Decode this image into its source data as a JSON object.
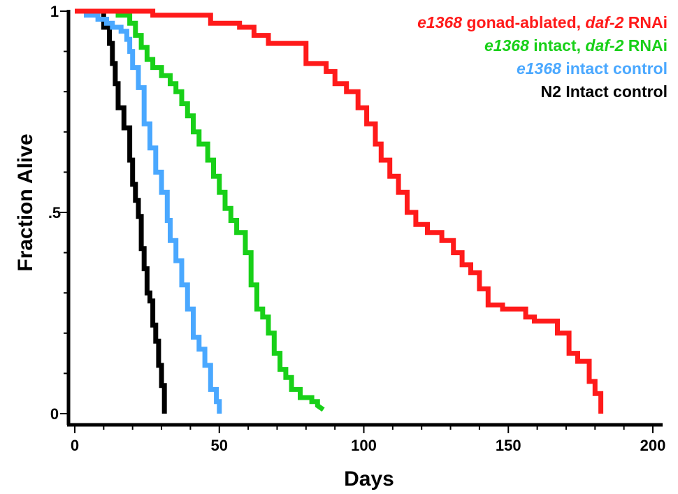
{
  "chart_data": {
    "type": "line",
    "step": true,
    "xlabel": "Days",
    "ylabel": "Fraction  Alive",
    "xlim": [
      0,
      200
    ],
    "ylim": [
      0,
      1
    ],
    "x_ticks": [
      "0",
      "50",
      "100",
      "150",
      "200"
    ],
    "y_ticks": [
      "0",
      ".5",
      "1"
    ],
    "grid": false,
    "legend_position": "top-right",
    "series": [
      {
        "name": "e1368 gonad-ablated, daf-2 RNAi",
        "label_parts": [
          {
            "text": "e1368",
            "italic": true
          },
          {
            "text": " gonad-ablated, ",
            "italic": false
          },
          {
            "text": "daf-2",
            "italic": true
          },
          {
            "text": " RNAi",
            "italic": false
          }
        ],
        "color": "#ff1a1a",
        "points": [
          [
            0,
            1.0
          ],
          [
            27,
            1.0
          ],
          [
            27,
            0.99
          ],
          [
            47,
            0.99
          ],
          [
            47,
            0.97
          ],
          [
            57,
            0.97
          ],
          [
            57,
            0.96
          ],
          [
            62,
            0.96
          ],
          [
            62,
            0.94
          ],
          [
            67,
            0.94
          ],
          [
            67,
            0.92
          ],
          [
            80,
            0.92
          ],
          [
            80,
            0.87
          ],
          [
            87,
            0.87
          ],
          [
            87,
            0.85
          ],
          [
            90,
            0.85
          ],
          [
            90,
            0.82
          ],
          [
            94,
            0.82
          ],
          [
            94,
            0.8
          ],
          [
            98,
            0.8
          ],
          [
            98,
            0.76
          ],
          [
            101,
            0.76
          ],
          [
            101,
            0.72
          ],
          [
            104,
            0.72
          ],
          [
            104,
            0.67
          ],
          [
            106,
            0.67
          ],
          [
            106,
            0.63
          ],
          [
            109,
            0.63
          ],
          [
            109,
            0.59
          ],
          [
            112,
            0.59
          ],
          [
            112,
            0.55
          ],
          [
            115,
            0.55
          ],
          [
            115,
            0.5
          ],
          [
            118,
            0.5
          ],
          [
            118,
            0.47
          ],
          [
            122,
            0.47
          ],
          [
            122,
            0.45
          ],
          [
            127,
            0.45
          ],
          [
            127,
            0.43
          ],
          [
            131,
            0.43
          ],
          [
            131,
            0.4
          ],
          [
            134,
            0.4
          ],
          [
            134,
            0.37
          ],
          [
            137,
            0.37
          ],
          [
            137,
            0.35
          ],
          [
            140,
            0.35
          ],
          [
            140,
            0.31
          ],
          [
            143,
            0.31
          ],
          [
            143,
            0.27
          ],
          [
            148,
            0.27
          ],
          [
            148,
            0.26
          ],
          [
            156,
            0.26
          ],
          [
            156,
            0.24
          ],
          [
            159,
            0.24
          ],
          [
            159,
            0.23
          ],
          [
            167,
            0.23
          ],
          [
            167,
            0.2
          ],
          [
            171,
            0.2
          ],
          [
            171,
            0.15
          ],
          [
            174,
            0.15
          ],
          [
            174,
            0.13
          ],
          [
            178,
            0.13
          ],
          [
            178,
            0.08
          ],
          [
            180,
            0.08
          ],
          [
            180,
            0.05
          ],
          [
            182,
            0.05
          ],
          [
            182,
            0.0
          ]
        ]
      },
      {
        "name": "e1368 intact, daf-2 RNAi",
        "label_parts": [
          {
            "text": "e1368",
            "italic": true
          },
          {
            "text": " intact, ",
            "italic": false
          },
          {
            "text": "daf-2",
            "italic": true
          },
          {
            "text": " RNAi",
            "italic": false
          }
        ],
        "color": "#18d018",
        "points": [
          [
            0,
            1.0
          ],
          [
            15,
            1.0
          ],
          [
            15,
            0.99
          ],
          [
            19,
            0.99
          ],
          [
            19,
            0.97
          ],
          [
            21,
            0.97
          ],
          [
            21,
            0.94
          ],
          [
            23,
            0.94
          ],
          [
            23,
            0.91
          ],
          [
            25,
            0.91
          ],
          [
            25,
            0.88
          ],
          [
            27,
            0.88
          ],
          [
            27,
            0.86
          ],
          [
            30,
            0.86
          ],
          [
            30,
            0.84
          ],
          [
            33,
            0.84
          ],
          [
            33,
            0.82
          ],
          [
            35,
            0.82
          ],
          [
            35,
            0.8
          ],
          [
            37,
            0.8
          ],
          [
            37,
            0.77
          ],
          [
            39,
            0.77
          ],
          [
            39,
            0.74
          ],
          [
            41,
            0.74
          ],
          [
            41,
            0.7
          ],
          [
            43,
            0.7
          ],
          [
            43,
            0.67
          ],
          [
            46,
            0.67
          ],
          [
            46,
            0.63
          ],
          [
            48,
            0.63
          ],
          [
            48,
            0.59
          ],
          [
            50,
            0.59
          ],
          [
            50,
            0.55
          ],
          [
            52,
            0.55
          ],
          [
            52,
            0.51
          ],
          [
            54,
            0.51
          ],
          [
            54,
            0.48
          ],
          [
            56,
            0.48
          ],
          [
            56,
            0.45
          ],
          [
            59,
            0.45
          ],
          [
            59,
            0.4
          ],
          [
            61,
            0.4
          ],
          [
            61,
            0.32
          ],
          [
            63,
            0.32
          ],
          [
            63,
            0.26
          ],
          [
            65,
            0.26
          ],
          [
            65,
            0.24
          ],
          [
            67,
            0.24
          ],
          [
            67,
            0.2
          ],
          [
            69,
            0.2
          ],
          [
            69,
            0.15
          ],
          [
            71,
            0.15
          ],
          [
            71,
            0.11
          ],
          [
            73,
            0.11
          ],
          [
            73,
            0.09
          ],
          [
            75,
            0.09
          ],
          [
            75,
            0.06
          ],
          [
            78,
            0.06
          ],
          [
            78,
            0.04
          ],
          [
            82,
            0.04
          ],
          [
            82,
            0.03
          ],
          [
            84,
            0.03
          ],
          [
            84,
            0.02
          ],
          [
            86,
            0.01
          ]
        ]
      },
      {
        "name": "e1368 intact control",
        "label_parts": [
          {
            "text": "e1368",
            "italic": true
          },
          {
            "text": " intact control",
            "italic": false
          }
        ],
        "color": "#4aa8ff",
        "points": [
          [
            0,
            1.0
          ],
          [
            4,
            1.0
          ],
          [
            4,
            0.99
          ],
          [
            8,
            0.99
          ],
          [
            8,
            0.98
          ],
          [
            11,
            0.98
          ],
          [
            11,
            0.97
          ],
          [
            13,
            0.97
          ],
          [
            13,
            0.96
          ],
          [
            16,
            0.96
          ],
          [
            16,
            0.95
          ],
          [
            18,
            0.95
          ],
          [
            18,
            0.93
          ],
          [
            19,
            0.93
          ],
          [
            19,
            0.9
          ],
          [
            20,
            0.9
          ],
          [
            20,
            0.86
          ],
          [
            22,
            0.86
          ],
          [
            22,
            0.81
          ],
          [
            24,
            0.81
          ],
          [
            24,
            0.72
          ],
          [
            26,
            0.72
          ],
          [
            26,
            0.66
          ],
          [
            28,
            0.66
          ],
          [
            28,
            0.6
          ],
          [
            30,
            0.6
          ],
          [
            30,
            0.55
          ],
          [
            32,
            0.55
          ],
          [
            32,
            0.48
          ],
          [
            33,
            0.48
          ],
          [
            33,
            0.43
          ],
          [
            35,
            0.43
          ],
          [
            35,
            0.38
          ],
          [
            37,
            0.38
          ],
          [
            37,
            0.32
          ],
          [
            39,
            0.32
          ],
          [
            39,
            0.26
          ],
          [
            41,
            0.26
          ],
          [
            41,
            0.19
          ],
          [
            43,
            0.19
          ],
          [
            43,
            0.16
          ],
          [
            45,
            0.16
          ],
          [
            45,
            0.12
          ],
          [
            47,
            0.12
          ],
          [
            47,
            0.06
          ],
          [
            49,
            0.06
          ],
          [
            49,
            0.03
          ],
          [
            50,
            0.03
          ],
          [
            50,
            0.0
          ]
        ]
      },
      {
        "name": "N2 Intact control",
        "label_parts": [
          {
            "text": "N2 Intact control",
            "italic": false
          }
        ],
        "color": "#000000",
        "points": [
          [
            0,
            1.0
          ],
          [
            10,
            1.0
          ],
          [
            10,
            0.96
          ],
          [
            12,
            0.96
          ],
          [
            12,
            0.92
          ],
          [
            13,
            0.92
          ],
          [
            13,
            0.87
          ],
          [
            14,
            0.87
          ],
          [
            14,
            0.82
          ],
          [
            15,
            0.82
          ],
          [
            15,
            0.76
          ],
          [
            17,
            0.76
          ],
          [
            17,
            0.71
          ],
          [
            19,
            0.71
          ],
          [
            19,
            0.63
          ],
          [
            20,
            0.63
          ],
          [
            20,
            0.57
          ],
          [
            21,
            0.57
          ],
          [
            21,
            0.53
          ],
          [
            22,
            0.53
          ],
          [
            22,
            0.49
          ],
          [
            23,
            0.49
          ],
          [
            23,
            0.41
          ],
          [
            24,
            0.41
          ],
          [
            24,
            0.36
          ],
          [
            25,
            0.36
          ],
          [
            25,
            0.3
          ],
          [
            26,
            0.3
          ],
          [
            26,
            0.28
          ],
          [
            27,
            0.28
          ],
          [
            27,
            0.22
          ],
          [
            28,
            0.22
          ],
          [
            28,
            0.18
          ],
          [
            29,
            0.18
          ],
          [
            29,
            0.12
          ],
          [
            30,
            0.12
          ],
          [
            30,
            0.07
          ],
          [
            31,
            0.07
          ],
          [
            31,
            0.0
          ]
        ]
      }
    ]
  }
}
